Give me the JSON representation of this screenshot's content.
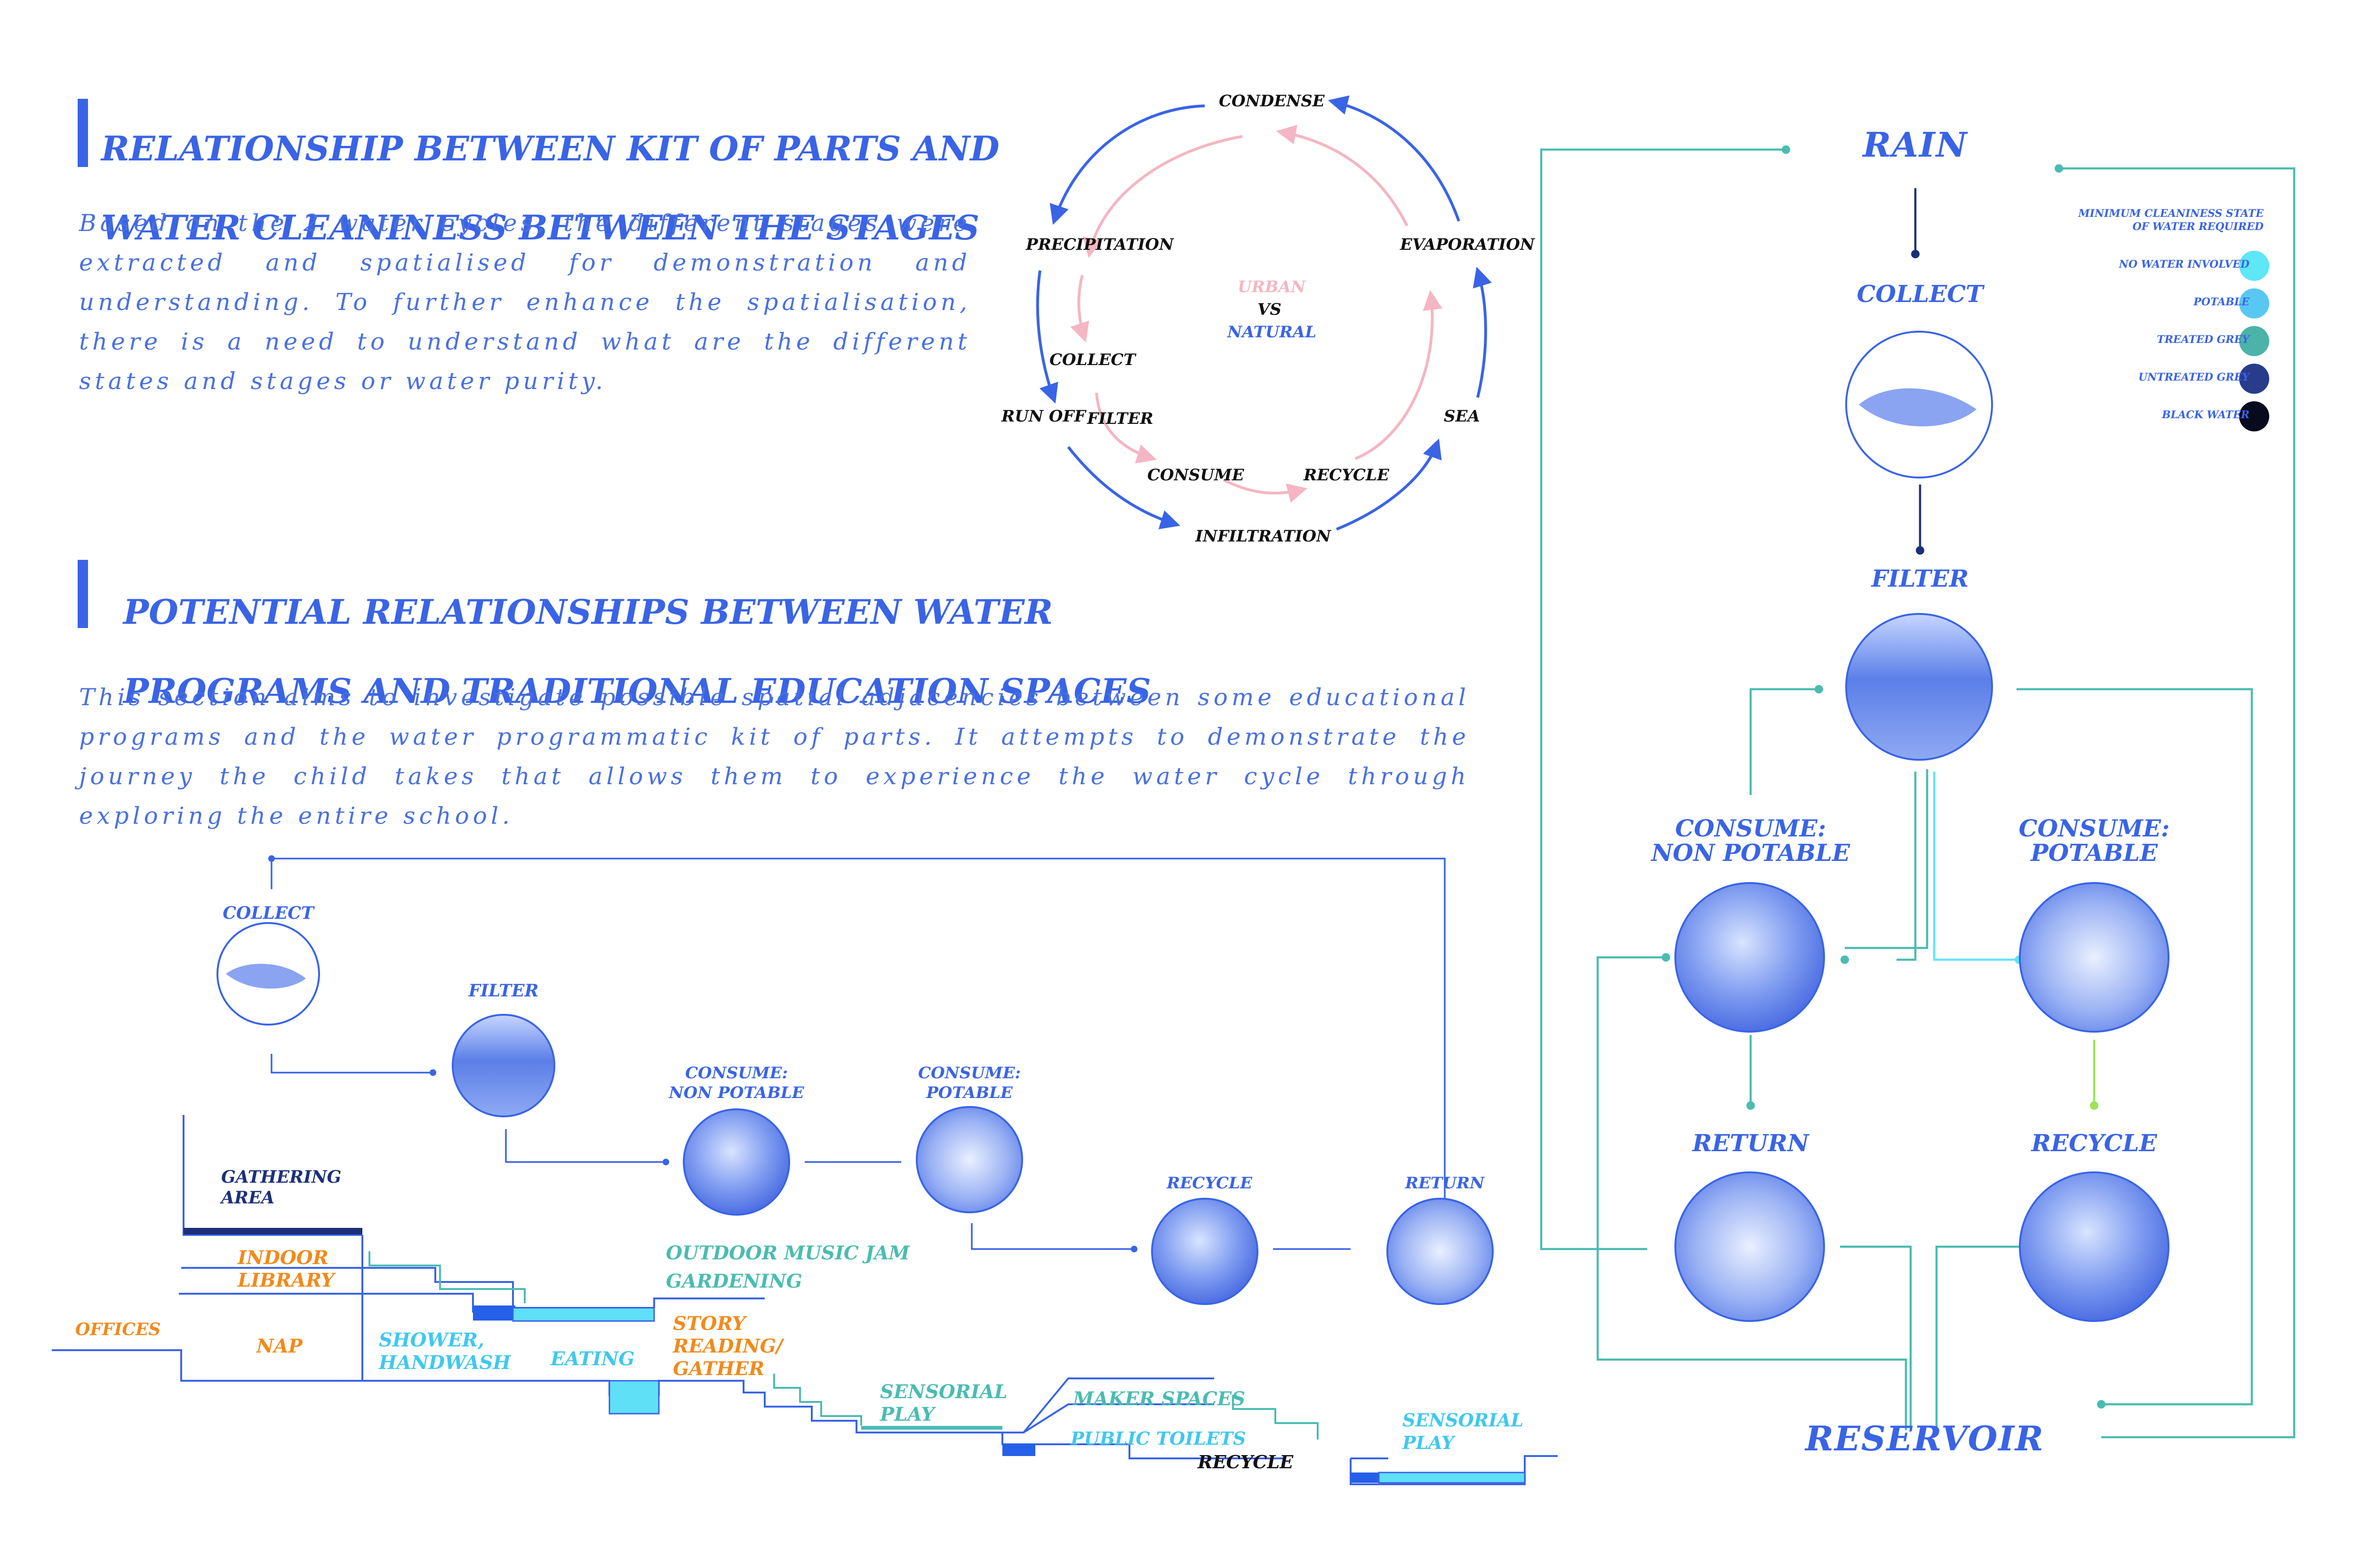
{
  "section1": {
    "title_line1": "RELATIONSHIP BETWEEN KIT OF PARTS AND",
    "title_line2": "WATER CLEANINESS BETWEEN THE STAGES",
    "body": "Based on the 2 water cycles, the different stages were extracted and spatialised for demonstration and understanding. To further enhance the spatialisation, there is a need to understand what are the different states and stages or water purity."
  },
  "section2": {
    "title_line1": "POTENTIAL RELATIONSHIPS BETWEEN WATER",
    "title_line2": "PROGRAMS AND TRADITIONAL EDUCATION SPACES",
    "body": "This section aims to investigate possible spatial adjacencies between some educational programs and the water programmatic kit of parts. It attempts to demonstrate the journey the child takes that allows them to experience the water cycle through exploring the entire school."
  },
  "cycle": {
    "condense": "CONDENSE",
    "precipitation": "PRECIPITATION",
    "evaporation": "EVAPORATION",
    "collect": "COLLECT",
    "run_off": "RUN OFF",
    "filter": "FILTER",
    "sea": "SEA",
    "consume": "CONSUME",
    "recycle": "RECYCLE",
    "infiltration": "INFILTRATION",
    "urban": "URBAN",
    "vs": "VS",
    "natural": "NATURAL"
  },
  "journey": {
    "collect": "COLLECT",
    "filter": "FILTER",
    "consume_np": "CONSUME:\nNON POTABLE",
    "consume_p": "CONSUME:\nPOTABLE",
    "recycle": "RECYCLE",
    "return": "RETURN"
  },
  "section_labels": {
    "gathering": "GATHERING\nAREA",
    "indoor_library": "INDOOR\nLIBRARY",
    "offices": "OFFICES",
    "nap": "NAP",
    "shower": "SHOWER,\nHANDWASH",
    "eating": "EATING",
    "outdoor_music": "OUTDOOR MUSIC JAM",
    "gardening": "GARDENING",
    "story": "STORY\nREADING/\nGATHER",
    "sensorial1": "SENSORIAL\nPLAY",
    "maker": "MAKER SPACES",
    "public_toilets": "PUBLIC TOILETS",
    "recycle": "RECYCLE",
    "sensorial2": "SENSORIAL\nPLAY"
  },
  "flow": {
    "rain": "RAIN",
    "collect": "COLLECT",
    "filter": "FILTER",
    "consume_np": "CONSUME:\nNON POTABLE",
    "consume_p": "CONSUME:\nPOTABLE",
    "return": "RETURN",
    "recycle": "RECYCLE",
    "reservoir": "RESERVOIR"
  },
  "legend": {
    "title": "MINIMUM CLEANINESS  STATE\nOF WATER REQUIRED",
    "items": [
      {
        "label": "NO WATER INVOLVED",
        "color": "#5fe6f7"
      },
      {
        "label": "POTABLE",
        "color": "#58c8f2"
      },
      {
        "label": "TREATED GREY",
        "color": "#4bb3a8"
      },
      {
        "label": "UNTREATED GREY",
        "color": "#283c8c"
      },
      {
        "label": "BLACK WATER",
        "color": "#080a1e"
      }
    ]
  },
  "colors": {
    "blue": "#3a64e6",
    "pink": "#f4b6c2",
    "teal": "#4bbcb0",
    "cyan": "#3fc8ee",
    "orange": "#f28a1c",
    "navy": "#1c2f7a"
  }
}
